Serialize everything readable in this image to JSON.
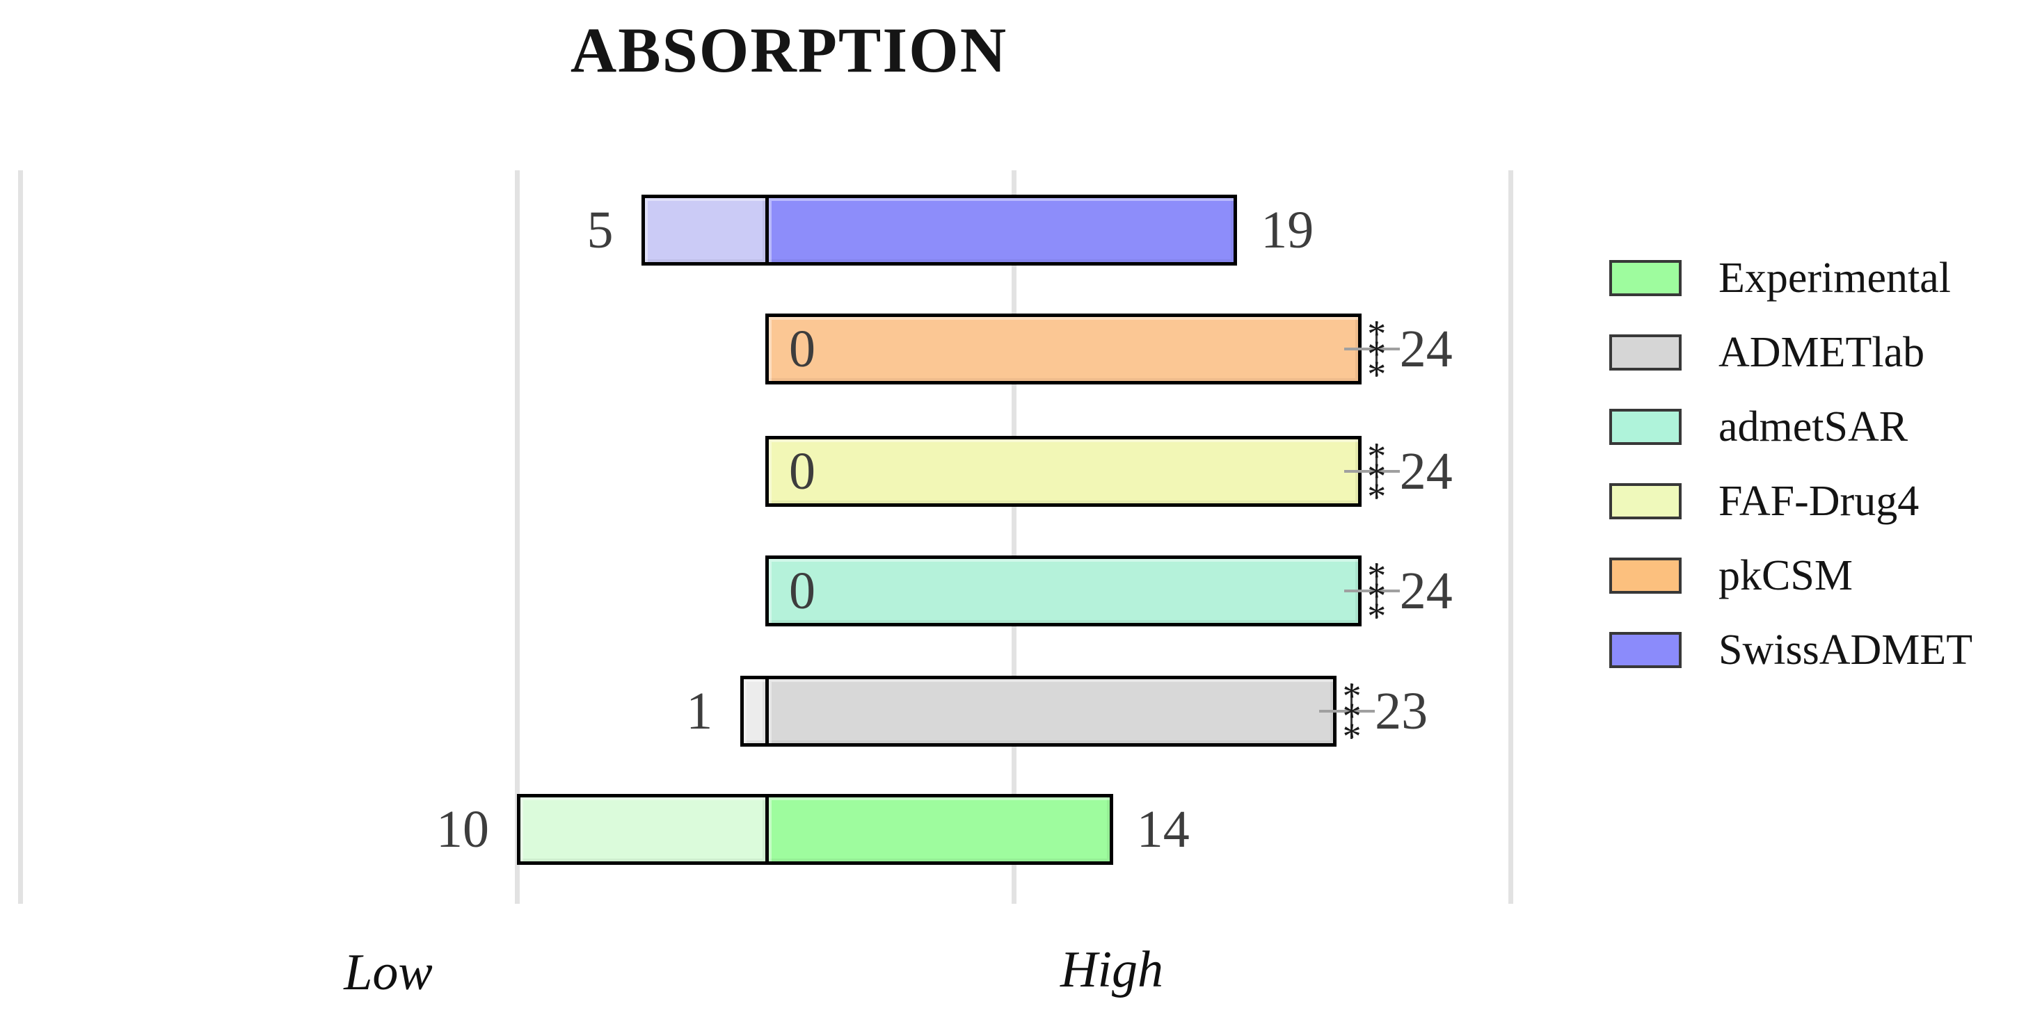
{
  "title": "ABSORPTION",
  "x_axis": {
    "low": "Low",
    "high": "High"
  },
  "legend": {
    "items": [
      {
        "label": "Experimental",
        "color": "#9efc9e"
      },
      {
        "label": "ADMETlab",
        "color": "#d6d6d6"
      },
      {
        "label": "admetSAR",
        "color": "#aff3da"
      },
      {
        "label": "FAF-Drug4",
        "color": "#eff9bb"
      },
      {
        "label": "pkCSM",
        "color": "#fcc07e"
      },
      {
        "label": "SwissADMET",
        "color": "#8b8bfb"
      }
    ]
  },
  "chart_data": {
    "type": "bar",
    "variant": "horizontal-diverging-stacked",
    "title": "ABSORPTION",
    "categories_top_to_bottom": [
      "SwissADMET",
      "pkCSM",
      "FAF-Drug4",
      "admetSAR",
      "ADMETlab",
      "Experimental"
    ],
    "series": [
      {
        "name": "Low",
        "values": [
          5,
          0,
          0,
          0,
          1,
          10
        ]
      },
      {
        "name": "High",
        "values": [
          19,
          24,
          24,
          24,
          23,
          14
        ]
      }
    ],
    "significance_marks": [
      "",
      "***",
      "***",
      "***",
      "***",
      ""
    ],
    "xlim": [
      -30,
      30
    ],
    "x_gridline_values": [
      -30,
      -10,
      10,
      30
    ],
    "x_end_labels": [
      "Low",
      "High"
    ],
    "grid": "vertical-only",
    "legend_position": "right",
    "colors": {
      "SwissADMET": {
        "high": "#8d8dfa",
        "low": "#cbcbf6"
      },
      "pkCSM": {
        "high": "#fbc794",
        "low": "#fde3c8"
      },
      "FAF-Drug4": {
        "high": "#f2f7b6",
        "low": "#f9fcdc"
      },
      "admetSAR": {
        "high": "#b5f2da",
        "low": "#dcf9ee"
      },
      "ADMETlab": {
        "high": "#d8d8d8",
        "low": "#ececec"
      },
      "Experimental": {
        "high": "#9efc9e",
        "low": "#dbfbdb"
      }
    }
  }
}
